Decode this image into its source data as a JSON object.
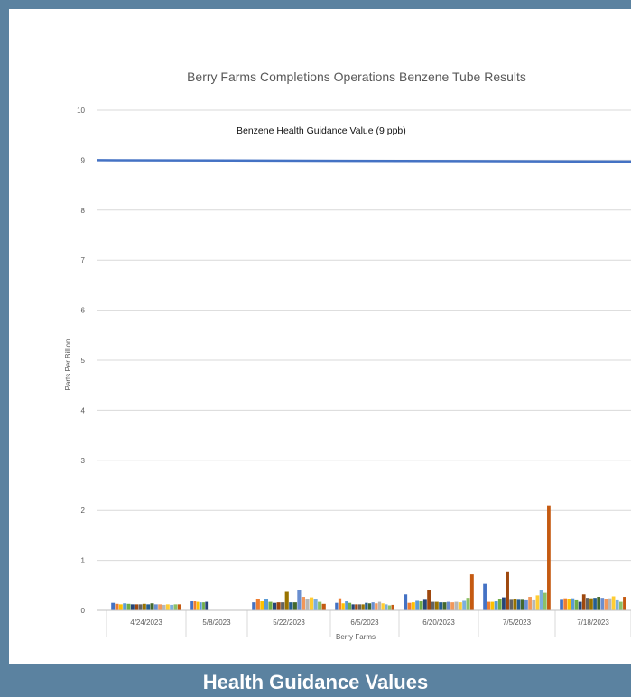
{
  "footer": {
    "label": "Health Guidance Values"
  },
  "chart_data": {
    "type": "bar",
    "title": "Berry Farms Completions Operations Benzene Tube Results",
    "xlabel": "Berry Farms",
    "ylabel": "Parts Per Billion",
    "ylim": [
      0,
      10
    ],
    "yticks": [
      0,
      1,
      2,
      3,
      4,
      5,
      6,
      7,
      8,
      9,
      10
    ],
    "grid": true,
    "legend": "none",
    "categories": [
      "4/24/2023",
      "5/8/2023",
      "5/22/2023",
      "6/5/2023",
      "6/20/2023",
      "7/5/2023",
      "7/18/2023"
    ],
    "series_colors": [
      "#4472c4",
      "#ed7d31",
      "#ffc000",
      "#5b9bd5",
      "#70ad47",
      "#264478",
      "#9e480e",
      "#636363",
      "#997300",
      "#255e91",
      "#43682b",
      "#698ed0",
      "#f1975a",
      "#b7b7b7",
      "#ffcd33",
      "#7cafdd",
      "#8cc168",
      "#c55a11"
    ],
    "values": [
      [
        0.15,
        0.13,
        0.12,
        0.14,
        0.13,
        0.12,
        0.12,
        0.12,
        0.13,
        0.12,
        0.14,
        0.12,
        0.12,
        0.11,
        0.12,
        0.11,
        0.12,
        0.12
      ],
      [
        0.18,
        0.18,
        0.17,
        0.16,
        0.16,
        0.17
      ],
      [
        0.16,
        0.23,
        0.18,
        0.23,
        0.17,
        0.15,
        0.16,
        0.16,
        0.37,
        0.16,
        0.16,
        0.4,
        0.27,
        0.22,
        0.26,
        0.22,
        0.17,
        0.13
      ],
      [
        0.15,
        0.24,
        0.14,
        0.18,
        0.15,
        0.12,
        0.12,
        0.12,
        0.12,
        0.15,
        0.14,
        0.16,
        0.14,
        0.17,
        0.14,
        0.12,
        0.1,
        0.11
      ],
      [
        0.32,
        0.15,
        0.16,
        0.19,
        0.18,
        0.21,
        0.4,
        0.17,
        0.17,
        0.16,
        0.16,
        0.17,
        0.16,
        0.17,
        0.16,
        0.19,
        0.25,
        0.72
      ],
      [
        0.53,
        0.17,
        0.17,
        0.18,
        0.22,
        0.26,
        0.78,
        0.21,
        0.22,
        0.21,
        0.21,
        0.2,
        0.27,
        0.2,
        0.3,
        0.4,
        0.35,
        2.1
      ],
      [
        0.21,
        0.24,
        0.22,
        0.24,
        0.2,
        0.17,
        0.32,
        0.25,
        0.24,
        0.25,
        0.27,
        0.25,
        0.23,
        0.24,
        0.28,
        0.2,
        0.17,
        0.27
      ]
    ],
    "reference_line": {
      "label": "Benzene Health Guidance Value (9 ppb)",
      "value": 9,
      "color": "#4472c4"
    }
  }
}
